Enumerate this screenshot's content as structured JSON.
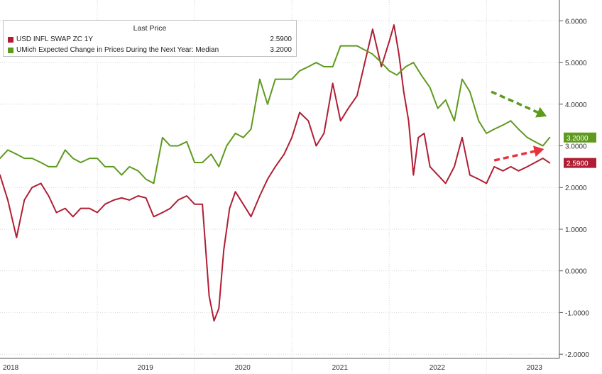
{
  "chart_data": {
    "type": "line",
    "legend_title": "Last Price",
    "legend_position": "top-left",
    "grid": true,
    "x_labels": [
      "2018",
      "2019",
      "2020",
      "2021",
      "2022",
      "2023"
    ],
    "x_range": [
      2018.0,
      2023.75
    ],
    "ylim": [
      -2.1,
      6.5
    ],
    "y_ticks": [
      -2,
      -1,
      0,
      1,
      2,
      3,
      4,
      5,
      6
    ],
    "y_tick_labels": [
      "-2.0000",
      "-1.0000",
      "0.0000",
      "1.0000",
      "2.0000",
      "3.0000",
      "4.0000",
      "5.0000",
      "6.0000"
    ],
    "series": [
      {
        "name": "USD INFL SWAP ZC 1Y",
        "color": "#b01e34",
        "last_value_label": "2.5900",
        "x": [
          2018.0,
          2018.08,
          2018.17,
          2018.25,
          2018.33,
          2018.42,
          2018.5,
          2018.58,
          2018.67,
          2018.75,
          2018.83,
          2018.92,
          2019.0,
          2019.08,
          2019.17,
          2019.25,
          2019.33,
          2019.42,
          2019.5,
          2019.58,
          2019.67,
          2019.75,
          2019.83,
          2019.92,
          2020.0,
          2020.08,
          2020.15,
          2020.2,
          2020.25,
          2020.3,
          2020.36,
          2020.42,
          2020.5,
          2020.58,
          2020.67,
          2020.75,
          2020.83,
          2020.92,
          2021.0,
          2021.08,
          2021.17,
          2021.25,
          2021.33,
          2021.42,
          2021.5,
          2021.58,
          2021.67,
          2021.75,
          2021.83,
          2021.92,
          2022.0,
          2022.05,
          2022.1,
          2022.15,
          2022.2,
          2022.25,
          2022.3,
          2022.36,
          2022.42,
          2022.5,
          2022.58,
          2022.67,
          2022.75,
          2022.83,
          2022.92,
          2023.0,
          2023.08,
          2023.17,
          2023.25,
          2023.33,
          2023.42,
          2023.5,
          2023.58,
          2023.65
        ],
        "values": [
          2.3,
          1.7,
          0.8,
          1.7,
          2.0,
          2.1,
          1.8,
          1.4,
          1.5,
          1.3,
          1.5,
          1.5,
          1.4,
          1.6,
          1.7,
          1.75,
          1.7,
          1.8,
          1.75,
          1.3,
          1.4,
          1.5,
          1.7,
          1.8,
          1.6,
          1.6,
          -0.6,
          -1.2,
          -0.9,
          0.5,
          1.5,
          1.9,
          1.6,
          1.3,
          1.8,
          2.2,
          2.5,
          2.8,
          3.2,
          3.8,
          3.6,
          3.0,
          3.3,
          4.5,
          3.6,
          3.9,
          4.2,
          5.0,
          5.8,
          4.9,
          5.5,
          5.9,
          5.2,
          4.3,
          3.6,
          2.3,
          3.2,
          3.3,
          2.5,
          2.3,
          2.1,
          2.5,
          3.2,
          2.3,
          2.2,
          2.1,
          2.5,
          2.4,
          2.5,
          2.4,
          2.5,
          2.6,
          2.7,
          2.59
        ]
      },
      {
        "name": "UMich Expected Change in Prices During the Next Year: Median",
        "color": "#5e9a1e",
        "last_value_label": "3.2000",
        "x": [
          2018.0,
          2018.08,
          2018.17,
          2018.25,
          2018.33,
          2018.42,
          2018.5,
          2018.58,
          2018.67,
          2018.75,
          2018.83,
          2018.92,
          2019.0,
          2019.08,
          2019.17,
          2019.25,
          2019.33,
          2019.42,
          2019.5,
          2019.58,
          2019.67,
          2019.75,
          2019.83,
          2019.92,
          2020.0,
          2020.08,
          2020.17,
          2020.25,
          2020.33,
          2020.42,
          2020.5,
          2020.58,
          2020.67,
          2020.75,
          2020.83,
          2020.92,
          2021.0,
          2021.08,
          2021.17,
          2021.25,
          2021.33,
          2021.42,
          2021.5,
          2021.58,
          2021.67,
          2021.75,
          2021.83,
          2021.92,
          2022.0,
          2022.08,
          2022.17,
          2022.25,
          2022.33,
          2022.42,
          2022.5,
          2022.58,
          2022.67,
          2022.75,
          2022.83,
          2022.92,
          2023.0,
          2023.08,
          2023.17,
          2023.25,
          2023.33,
          2023.42,
          2023.5,
          2023.58,
          2023.65
        ],
        "values": [
          2.7,
          2.9,
          2.8,
          2.7,
          2.7,
          2.6,
          2.5,
          2.5,
          2.9,
          2.7,
          2.6,
          2.7,
          2.7,
          2.5,
          2.5,
          2.3,
          2.5,
          2.4,
          2.2,
          2.1,
          3.2,
          3.0,
          3.0,
          3.1,
          2.6,
          2.6,
          2.8,
          2.5,
          3.0,
          3.3,
          3.2,
          3.4,
          4.6,
          4.0,
          4.6,
          4.6,
          4.6,
          4.8,
          4.9,
          5.0,
          4.9,
          4.9,
          5.4,
          5.4,
          5.4,
          5.3,
          5.2,
          5.0,
          4.8,
          4.7,
          4.9,
          5.0,
          4.7,
          4.4,
          3.9,
          4.1,
          3.6,
          4.6,
          4.3,
          3.6,
          3.3,
          3.4,
          3.5,
          3.6,
          3.4,
          3.2,
          3.1,
          3.0,
          3.2
        ]
      }
    ]
  }
}
